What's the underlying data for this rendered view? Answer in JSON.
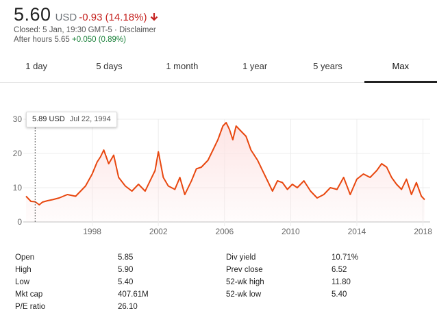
{
  "quote": {
    "price": "5.60",
    "currency": "USD",
    "change": "-0.93 (14.18%)",
    "direction_icon": "arrow-down-icon",
    "closed_text": "Closed: 5 Jan, 19:30 GMT-5 · Disclaimer",
    "after_hours_label": "After hours 5.65",
    "after_hours_change": "+0.050 (0.89%)"
  },
  "colors": {
    "negative": "#c5221f",
    "positive": "#188038",
    "line": "#e8470f",
    "fill": "#fde3e3"
  },
  "tabs": [
    "1 day",
    "5 days",
    "1 month",
    "1 year",
    "5 years",
    "Max"
  ],
  "active_tab": "Max",
  "tooltip": {
    "value": "5.89 USD",
    "date": "Jul 22, 1994"
  },
  "stats": {
    "left": [
      {
        "label": "Open",
        "value": "5.85"
      },
      {
        "label": "High",
        "value": "5.90"
      },
      {
        "label": "Low",
        "value": "5.40"
      },
      {
        "label": "Mkt cap",
        "value": "407.61M"
      },
      {
        "label": "P/E ratio",
        "value": "26.10"
      }
    ],
    "right": [
      {
        "label": "Div yield",
        "value": "10.71%"
      },
      {
        "label": "Prev close",
        "value": "6.52"
      },
      {
        "label": "52-wk high",
        "value": "11.80"
      },
      {
        "label": "52-wk low",
        "value": "5.40"
      }
    ]
  },
  "chart_data": {
    "type": "area",
    "title": "",
    "xlabel": "",
    "ylabel": "",
    "xlim": [
      1994.0,
      2018.1
    ],
    "ylim": [
      0,
      30
    ],
    "x_ticks": [
      1998,
      2002,
      2006,
      2010,
      2014,
      2018
    ],
    "y_ticks": [
      0,
      10,
      20,
      30
    ],
    "grid": "horizontal",
    "hover_marker_x": 1994.55,
    "series": [
      {
        "x": [
          1994.0,
          1994.3,
          1994.55,
          1994.8,
          1995.0,
          1995.3,
          1995.6,
          1996.0,
          1996.5,
          1997.0,
          1997.3,
          1997.6,
          1998.0,
          1998.3,
          1998.5,
          1998.7,
          1999.0,
          1999.3,
          1999.6,
          2000.0,
          2000.4,
          2000.8,
          2001.2,
          2001.5,
          2001.8,
          2002.0,
          2002.3,
          2002.6,
          2003.0,
          2003.3,
          2003.6,
          2004.0,
          2004.3,
          2004.6,
          2005.0,
          2005.3,
          2005.6,
          2005.9,
          2006.1,
          2006.3,
          2006.5,
          2006.7,
          2007.0,
          2007.3,
          2007.6,
          2008.0,
          2008.3,
          2008.6,
          2008.9,
          2009.2,
          2009.5,
          2009.8,
          2010.1,
          2010.4,
          2010.8,
          2011.2,
          2011.6,
          2012.0,
          2012.4,
          2012.8,
          2013.2,
          2013.6,
          2014.0,
          2014.4,
          2014.8,
          2015.2,
          2015.5,
          2015.8,
          2016.1,
          2016.4,
          2016.7,
          2017.0,
          2017.3,
          2017.6,
          2017.9,
          2018.1
        ],
        "values": [
          7.5,
          6.0,
          5.9,
          5.0,
          5.8,
          6.2,
          6.5,
          7.0,
          8.0,
          7.5,
          9.0,
          10.5,
          14.0,
          17.5,
          19.0,
          21.0,
          17.0,
          19.5,
          13.0,
          10.5,
          9.0,
          11.0,
          9.0,
          12.0,
          15.0,
          20.5,
          13.0,
          10.5,
          9.5,
          13.0,
          8.0,
          12.0,
          15.5,
          16.0,
          18.0,
          21.0,
          24.0,
          28.0,
          29.0,
          27.0,
          24.0,
          28.0,
          26.5,
          25.0,
          21.0,
          18.0,
          15.0,
          12.0,
          9.0,
          12.0,
          11.5,
          9.5,
          11.0,
          10.0,
          12.0,
          9.0,
          7.0,
          8.0,
          10.0,
          9.5,
          13.0,
          8.0,
          12.5,
          14.0,
          13.0,
          15.0,
          17.0,
          16.0,
          13.0,
          11.0,
          9.5,
          12.5,
          8.0,
          11.5,
          7.5,
          6.5
        ]
      }
    ]
  }
}
